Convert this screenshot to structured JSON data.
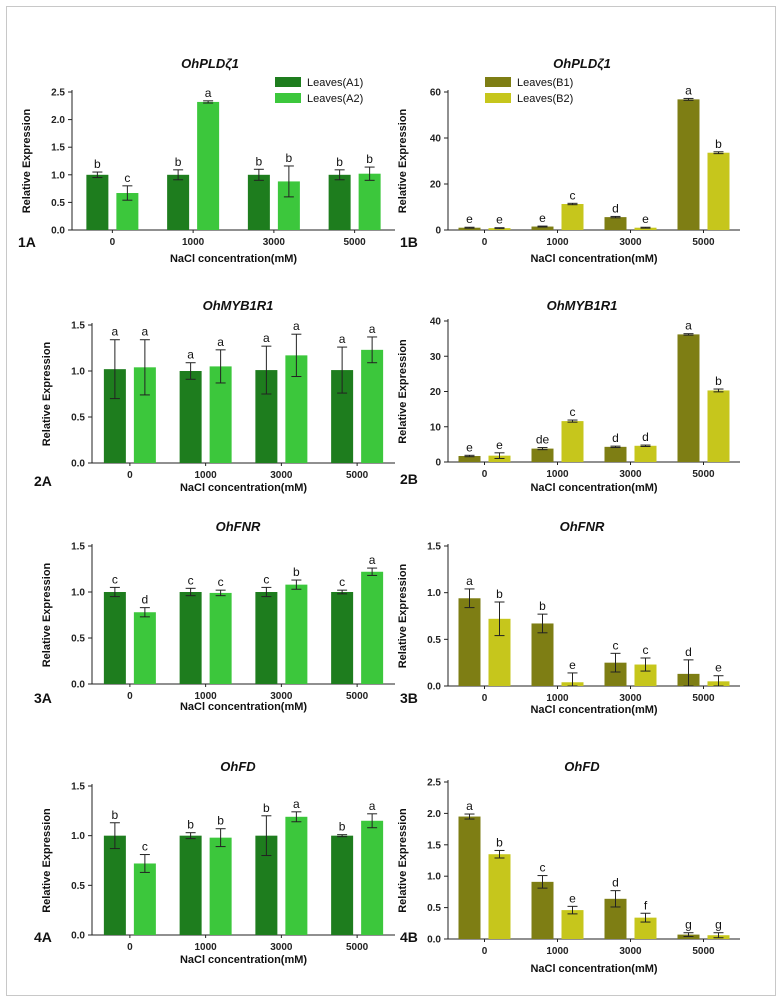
{
  "figure": {
    "xlabel": "NaCl concentration(mM)",
    "ylabel": "Relative Expression"
  },
  "colors": {
    "A1": "#1e7d1e",
    "A2": "#3cc73c",
    "B1": "#7e7e14",
    "B2": "#c6c61c"
  },
  "chart_data": [
    {
      "id": "1A",
      "type": "bar",
      "title": "OhPLDζ1",
      "xlabel": "NaCl concentration(mM)",
      "ylabel": "Relative Expression",
      "categories": [
        "0",
        "1000",
        "3000",
        "5000"
      ],
      "ylim": [
        0,
        2.5
      ],
      "yticks": [
        0.0,
        0.5,
        1.0,
        1.5,
        2.0,
        2.5
      ],
      "tick_decimals": 1,
      "legend": "top-right",
      "series": [
        {
          "name": "Leaves(A1)",
          "color": "A1",
          "values": [
            1.0,
            1.0,
            1.0,
            1.0
          ],
          "errors": [
            0.05,
            0.09,
            0.1,
            0.09
          ],
          "labels": [
            "b",
            "b",
            "b",
            "b"
          ]
        },
        {
          "name": "Leaves(A2)",
          "color": "A2",
          "values": [
            0.67,
            2.32,
            0.88,
            1.02
          ],
          "errors": [
            0.13,
            0.02,
            0.28,
            0.12
          ],
          "labels": [
            "c",
            "a",
            "b",
            "b"
          ]
        }
      ]
    },
    {
      "id": "1B",
      "type": "bar",
      "title": "OhPLDζ1",
      "xlabel": "NaCl concentration(mM)",
      "ylabel": "Relative Expression",
      "categories": [
        "0",
        "1000",
        "3000",
        "5000"
      ],
      "ylim": [
        0,
        60
      ],
      "yticks": [
        0,
        20,
        40,
        60
      ],
      "tick_decimals": 0,
      "legend": "top-left",
      "series": [
        {
          "name": "Leaves(B1)",
          "color": "B1",
          "values": [
            1.0,
            1.5,
            5.6,
            56.8
          ],
          "errors": [
            0.2,
            0.2,
            0.3,
            0.4
          ],
          "labels": [
            "e",
            "e",
            "d",
            "a"
          ]
        },
        {
          "name": "Leaves(B2)",
          "color": "B2",
          "values": [
            0.8,
            11.3,
            1.0,
            33.6
          ],
          "errors": [
            0.2,
            0.3,
            0.2,
            0.4
          ],
          "labels": [
            "e",
            "c",
            "e",
            "b"
          ]
        }
      ]
    },
    {
      "id": "2A",
      "type": "bar",
      "title": "OhMYB1R1",
      "xlabel": "NaCl concentration(mM)",
      "ylabel": "Relative Expression",
      "categories": [
        "0",
        "1000",
        "3000",
        "5000"
      ],
      "ylim": [
        0,
        1.5
      ],
      "yticks": [
        0.0,
        0.5,
        1.0,
        1.5
      ],
      "tick_decimals": 1,
      "series": [
        {
          "name": "Leaves(A1)",
          "color": "A1",
          "values": [
            1.02,
            1.0,
            1.01,
            1.01
          ],
          "errors": [
            0.32,
            0.09,
            0.26,
            0.25
          ],
          "labels": [
            "a",
            "a",
            "a",
            "a"
          ]
        },
        {
          "name": "Leaves(A2)",
          "color": "A2",
          "values": [
            1.04,
            1.05,
            1.17,
            1.23
          ],
          "errors": [
            0.3,
            0.18,
            0.23,
            0.14
          ],
          "labels": [
            "a",
            "a",
            "a",
            "a"
          ]
        }
      ]
    },
    {
      "id": "2B",
      "type": "bar",
      "title": "OhMYB1R1",
      "xlabel": "NaCl concentration(mM)",
      "ylabel": "Relative Expression",
      "categories": [
        "0",
        "1000",
        "3000",
        "5000"
      ],
      "ylim": [
        0,
        40
      ],
      "yticks": [
        0,
        10,
        20,
        30,
        40
      ],
      "tick_decimals": 0,
      "series": [
        {
          "name": "Leaves(B1)",
          "color": "B1",
          "values": [
            1.7,
            3.8,
            4.3,
            36.2
          ],
          "errors": [
            0.2,
            0.3,
            0.2,
            0.2
          ],
          "labels": [
            "e",
            "de",
            "d",
            "a"
          ]
        },
        {
          "name": "Leaves(B2)",
          "color": "B2",
          "values": [
            1.8,
            11.6,
            4.6,
            20.3
          ],
          "errors": [
            0.8,
            0.3,
            0.2,
            0.4
          ],
          "labels": [
            "e",
            "c",
            "d",
            "b"
          ]
        }
      ]
    },
    {
      "id": "3A",
      "type": "bar",
      "title": "OhFNR",
      "xlabel": "NaCl concentration(mM)",
      "ylabel": "Relative Expression",
      "categories": [
        "0",
        "1000",
        "3000",
        "5000"
      ],
      "ylim": [
        0,
        1.5
      ],
      "yticks": [
        0.0,
        0.5,
        1.0,
        1.5
      ],
      "tick_decimals": 1,
      "series": [
        {
          "name": "Leaves(A1)",
          "color": "A1",
          "values": [
            1.0,
            1.0,
            1.0,
            1.0
          ],
          "errors": [
            0.05,
            0.04,
            0.05,
            0.02
          ],
          "labels": [
            "c",
            "c",
            "c",
            "c"
          ]
        },
        {
          "name": "Leaves(A2)",
          "color": "A2",
          "values": [
            0.78,
            0.99,
            1.08,
            1.22
          ],
          "errors": [
            0.05,
            0.03,
            0.05,
            0.04
          ],
          "labels": [
            "d",
            "c",
            "b",
            "a"
          ]
        }
      ]
    },
    {
      "id": "3B",
      "type": "bar",
      "title": "OhFNR",
      "xlabel": "NaCl concentration(mM)",
      "ylabel": "Relative Expression",
      "categories": [
        "0",
        "1000",
        "3000",
        "5000"
      ],
      "ylim": [
        0,
        1.5
      ],
      "yticks": [
        0.0,
        0.5,
        1.0,
        1.5
      ],
      "tick_decimals": 1,
      "series": [
        {
          "name": "Leaves(B1)",
          "color": "B1",
          "values": [
            0.94,
            0.67,
            0.25,
            0.13
          ],
          "errors": [
            0.1,
            0.1,
            0.1,
            0.15
          ],
          "labels": [
            "a",
            "b",
            "c",
            "d"
          ]
        },
        {
          "name": "Leaves(B2)",
          "color": "B2",
          "values": [
            0.72,
            0.04,
            0.23,
            0.05
          ],
          "errors": [
            0.18,
            0.1,
            0.07,
            0.06
          ],
          "labels": [
            "b",
            "e",
            "c",
            "e"
          ]
        }
      ]
    },
    {
      "id": "4A",
      "type": "bar",
      "title": "OhFD",
      "xlabel": "NaCl concentration(mM)",
      "ylabel": "Relative Expression",
      "categories": [
        "0",
        "1000",
        "3000",
        "5000"
      ],
      "ylim": [
        0,
        1.5
      ],
      "yticks": [
        0.0,
        0.5,
        1.0,
        1.5
      ],
      "tick_decimals": 1,
      "series": [
        {
          "name": "Leaves(A1)",
          "color": "A1",
          "values": [
            1.0,
            1.0,
            1.0,
            1.0
          ],
          "errors": [
            0.13,
            0.03,
            0.2,
            0.01
          ],
          "labels": [
            "b",
            "b",
            "b",
            "b"
          ]
        },
        {
          "name": "Leaves(A2)",
          "color": "A2",
          "values": [
            0.72,
            0.98,
            1.19,
            1.15
          ],
          "errors": [
            0.09,
            0.09,
            0.05,
            0.07
          ],
          "labels": [
            "c",
            "b",
            "a",
            "a"
          ]
        }
      ]
    },
    {
      "id": "4B",
      "type": "bar",
      "title": "OhFD",
      "xlabel": "NaCl concentration(mM)",
      "ylabel": "Relative Expression",
      "categories": [
        "0",
        "1000",
        "3000",
        "5000"
      ],
      "ylim": [
        0,
        2.5
      ],
      "yticks": [
        0.0,
        0.5,
        1.0,
        1.5,
        2.0,
        2.5
      ],
      "tick_decimals": 1,
      "series": [
        {
          "name": "Leaves(B1)",
          "color": "B1",
          "values": [
            1.95,
            0.91,
            0.64,
            0.07
          ],
          "errors": [
            0.04,
            0.1,
            0.13,
            0.03
          ],
          "labels": [
            "a",
            "c",
            "d",
            "g"
          ]
        },
        {
          "name": "Leaves(B2)",
          "color": "B2",
          "values": [
            1.35,
            0.46,
            0.34,
            0.06
          ],
          "errors": [
            0.06,
            0.06,
            0.07,
            0.04
          ],
          "labels": [
            "b",
            "e",
            "f",
            "g"
          ]
        }
      ]
    }
  ]
}
